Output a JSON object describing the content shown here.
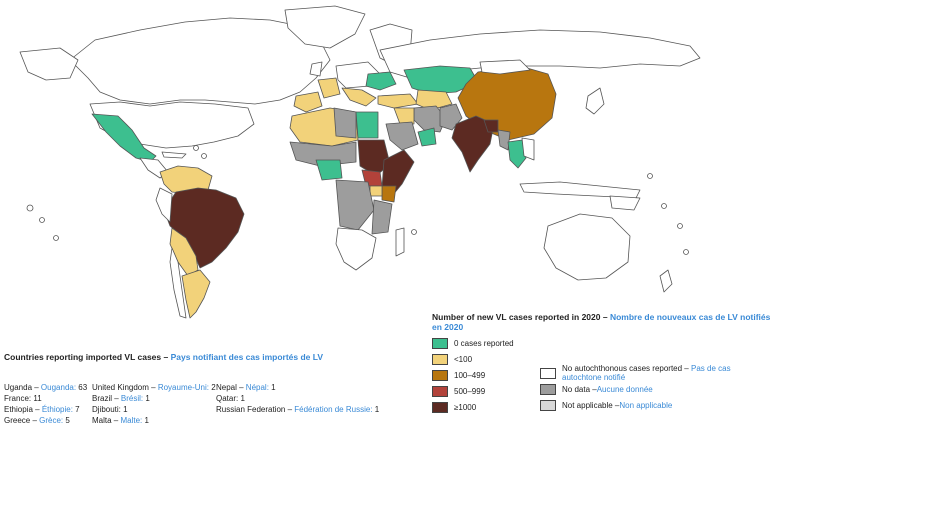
{
  "legend": {
    "title_en": "Number of new VL cases reported in 2020 – ",
    "title_fr": "Nombre de nouveaux cas de LV notifiés en 2020",
    "items": [
      {
        "label": "0 cases reported",
        "label_fr": "",
        "color": "#3dbf8f"
      },
      {
        "label": "<100",
        "label_fr": "",
        "color": "#f2d27a"
      },
      {
        "label": "100–499",
        "label_fr": "",
        "color": "#b8760f"
      },
      {
        "label": "500–999",
        "label_fr": "",
        "color": "#b2423a"
      },
      {
        "label": "≥1000",
        "label_fr": "",
        "color": "#5c2a22"
      },
      {
        "label": "No autochthonous cases reported – ",
        "label_fr": "Pas de cas autochtone notifié",
        "color": "#ffffff"
      },
      {
        "label": "No data – ",
        "label_fr": "Aucune donnée",
        "color": "#9d9d9d"
      },
      {
        "label": "Not applicable – ",
        "label_fr": "Non applicable",
        "color": "#d8d8d8"
      }
    ]
  },
  "imported": {
    "title_en": "Countries reporting imported VL cases – ",
    "title_fr": "Pays notifiant des cas importés de LV",
    "columns": [
      [
        {
          "en": "Uganda – ",
          "fr": "Ouganda: ",
          "val": "63"
        },
        {
          "en": "France: ",
          "fr": "",
          "val": "11"
        },
        {
          "en": "Ethiopia – ",
          "fr": "Éthiopie: ",
          "val": "7"
        },
        {
          "en": "Greece – ",
          "fr": "Grèce: ",
          "val": "5"
        }
      ],
      [
        {
          "en": "United Kingdom – ",
          "fr": "Royaume-Uni: ",
          "val": "2"
        },
        {
          "en": "Brazil – ",
          "fr": "Brésil: ",
          "val": "1"
        },
        {
          "en": "Djibouti: ",
          "fr": "",
          "val": "1"
        },
        {
          "en": "Malta – ",
          "fr": "Malte: ",
          "val": "1"
        }
      ],
      [
        {
          "en": "Nepal – ",
          "fr": "Népal: ",
          "val": "1"
        },
        {
          "en": "Qatar: ",
          "fr": "",
          "val": "1"
        },
        {
          "en": "Russian Federation – ",
          "fr": "Fédération de Russie: ",
          "val": "1"
        }
      ]
    ]
  }
}
